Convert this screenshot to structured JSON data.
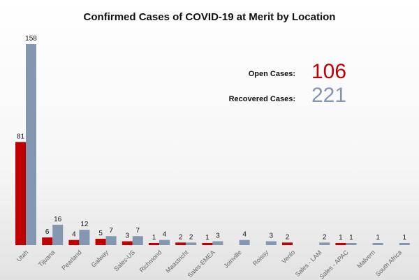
{
  "chart_data": {
    "type": "bar",
    "title": "Confirmed Cases of COVID-19 at Merit by Location",
    "categories": [
      "Utah",
      "Tijuana",
      "Pearland",
      "Galway",
      "Sales-US",
      "Richmond",
      "Maastricht",
      "Sales-EMEA",
      "Joinville",
      "Roissy",
      "Venlo",
      "Sales - LAM",
      "Sales - APAC",
      "Malvern",
      "South Africa"
    ],
    "series": [
      {
        "values": [
          81,
          6,
          4,
          5,
          3,
          1,
          2,
          1,
          null,
          null,
          2,
          null,
          1,
          null,
          null
        ],
        "color": "#c00000"
      },
      {
        "values": [
          158,
          16,
          12,
          7,
          7,
          4,
          2,
          3,
          4,
          3,
          null,
          2,
          1,
          1,
          1
        ],
        "color": "#8497b0"
      }
    ],
    "grid": false,
    "legend": "none"
  },
  "summary": {
    "open_label": "Open Cases:",
    "open_value": "106",
    "open_color": "#c00000",
    "recovered_label": "Recovered Cases:",
    "recovered_value": "221",
    "recovered_color": "#8497b0"
  }
}
